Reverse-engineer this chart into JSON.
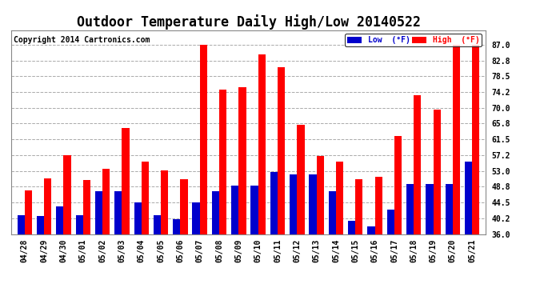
{
  "title": "Outdoor Temperature Daily High/Low 20140522",
  "copyright": "Copyright 2014 Cartronics.com",
  "legend_low": "Low  (°F)",
  "legend_high": "High  (°F)",
  "dates": [
    "04/28",
    "04/29",
    "04/30",
    "05/01",
    "05/02",
    "05/03",
    "05/04",
    "05/05",
    "05/06",
    "05/07",
    "05/08",
    "05/09",
    "05/10",
    "05/11",
    "05/12",
    "05/13",
    "05/14",
    "05/15",
    "05/16",
    "05/17",
    "05/18",
    "05/19",
    "05/20",
    "05/21"
  ],
  "highs": [
    47.8,
    51.0,
    57.2,
    50.5,
    53.5,
    64.5,
    55.5,
    53.2,
    50.8,
    87.0,
    75.0,
    75.5,
    84.5,
    81.0,
    65.5,
    57.0,
    55.5,
    50.8,
    51.5,
    62.5,
    73.5,
    69.5,
    87.0,
    87.0
  ],
  "lows": [
    41.0,
    40.8,
    43.5,
    41.0,
    47.5,
    47.5,
    44.5,
    41.0,
    40.0,
    44.5,
    47.5,
    49.0,
    49.0,
    52.8,
    52.0,
    52.0,
    47.5,
    39.5,
    38.0,
    42.5,
    49.5,
    49.5,
    49.5,
    55.5
  ],
  "high_color": "#ff0000",
  "low_color": "#0000cc",
  "background_color": "#ffffff",
  "grid_color": "#aaaaaa",
  "ylim": [
    36.0,
    91.0
  ],
  "yticks": [
    36.0,
    40.2,
    44.5,
    48.8,
    53.0,
    57.2,
    61.5,
    65.8,
    70.0,
    74.2,
    78.5,
    82.8,
    87.0
  ],
  "title_fontsize": 12,
  "copyright_fontsize": 7,
  "tick_fontsize": 7,
  "bar_width": 0.38
}
